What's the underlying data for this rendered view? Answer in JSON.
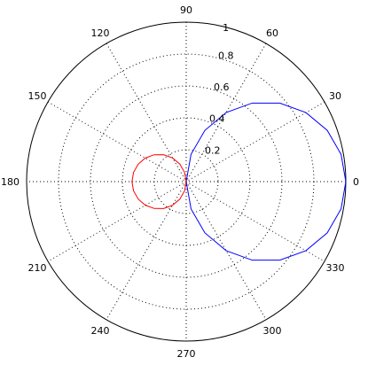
{
  "chart_data": {
    "type": "line",
    "projection": "polar",
    "grid": true,
    "r_range": [
      0,
      1
    ],
    "r_ticks": [
      0.2,
      0.4,
      0.6,
      0.8,
      1
    ],
    "r_tick_labels": [
      "0.2",
      "0.4",
      "0.6",
      "0.8",
      "1"
    ],
    "theta_ticks_deg": [
      0,
      30,
      60,
      90,
      120,
      150,
      180,
      210,
      240,
      270,
      300,
      330
    ],
    "theta_tick_labels": [
      "0",
      "30",
      "60",
      "90",
      "120",
      "150",
      "180",
      "210",
      "240",
      "270",
      "300",
      "330"
    ],
    "series": [
      {
        "color": "#0000ff",
        "theta_deg": [
          0,
          10,
          20,
          30,
          40,
          50,
          60,
          70,
          80,
          90,
          100,
          110,
          120,
          130,
          140,
          150,
          160,
          170,
          180,
          190,
          200,
          210,
          220,
          230,
          240,
          250,
          260,
          270,
          280,
          290,
          300,
          310,
          320,
          330,
          340,
          350,
          360
        ],
        "r": [
          1.0,
          0.985,
          0.94,
          0.866,
          0.766,
          0.643,
          0.5,
          0.342,
          0.174,
          0.0,
          0.0,
          0.0,
          0.0,
          0.0,
          0.0,
          0.0,
          0.0,
          0.0,
          0.0,
          0.0,
          0.0,
          0.0,
          0.0,
          0.0,
          0.0,
          0.0,
          0.0,
          0.0,
          0.174,
          0.342,
          0.5,
          0.643,
          0.766,
          0.866,
          0.94,
          0.985,
          1.0
        ]
      },
      {
        "color": "#ff0000",
        "theta_deg": [
          90,
          100,
          110,
          120,
          130,
          140,
          150,
          160,
          170,
          180,
          190,
          200,
          210,
          220,
          230,
          240,
          250,
          260,
          270
        ],
        "r": [
          0.0,
          0.059,
          0.117,
          0.171,
          0.22,
          0.262,
          0.296,
          0.32,
          0.335,
          0.34,
          0.335,
          0.32,
          0.296,
          0.262,
          0.22,
          0.171,
          0.117,
          0.059,
          0.0
        ]
      }
    ]
  }
}
